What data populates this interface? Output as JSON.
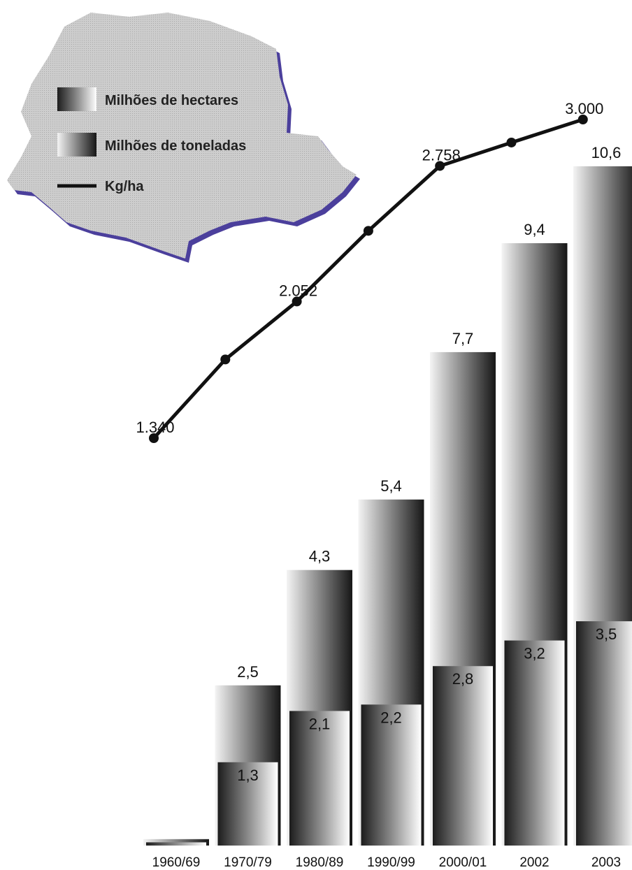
{
  "chart_data": {
    "type": "bar",
    "categories": [
      "1960/69",
      "1970/79",
      "1980/89",
      "1990/99",
      "2000/01",
      "2002",
      "2003"
    ],
    "series": [
      {
        "name": "Milhões de toneladas",
        "values": [
          0.1,
          2.5,
          4.3,
          5.4,
          7.7,
          9.4,
          10.6
        ],
        "labels": [
          "",
          "2,5",
          "4,3",
          "5,4",
          "7,7",
          "9,4",
          "10,6"
        ]
      },
      {
        "name": "Milhões de hectares",
        "values": [
          0.05,
          1.3,
          2.1,
          2.2,
          2.8,
          3.2,
          3.5
        ],
        "labels": [
          "",
          "1,3",
          "2,1",
          "2,2",
          "2,8",
          "3,2",
          "3,5"
        ]
      }
    ],
    "line": {
      "name": "Kg/ha",
      "values": [
        1340,
        1750,
        2052,
        2420,
        2758,
        2880,
        3000
      ],
      "labels": [
        "1.340",
        "",
        "2.052",
        "",
        "2.758",
        "",
        "3.000"
      ]
    },
    "legend": {
      "placement": "top-left",
      "items": [
        "Milhões de hectares",
        "Milhões de toneladas",
        "Kg/ha"
      ]
    },
    "colors": {
      "bar_dark": "#1e1e1e",
      "bar_light": "#ffffff",
      "line": "#111111",
      "map": "#cfcfcf",
      "map_shadow": "#4a3f9a"
    }
  }
}
